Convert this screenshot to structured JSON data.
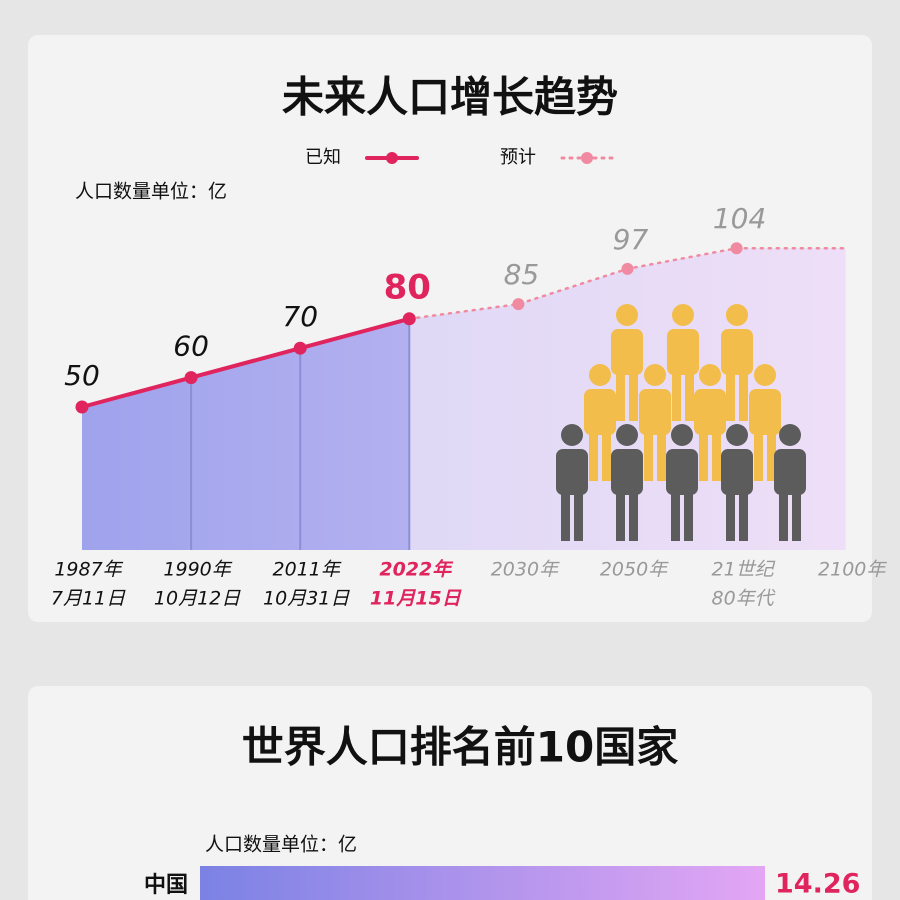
{
  "chart_data": [
    {
      "type": "line",
      "title": "未来人口增长趋势",
      "unit_label": "人口数量单位：亿",
      "categories": [
        [
          "1987年",
          "7月11日"
        ],
        [
          "1990年",
          "10月12日"
        ],
        [
          "2011年",
          "10月31日"
        ],
        [
          "2022年",
          "11月15日"
        ],
        [
          "2030年"
        ],
        [
          "2050年"
        ],
        [
          "21世纪",
          "80年代"
        ],
        [
          "2100年"
        ]
      ],
      "series": [
        {
          "name": "已知",
          "color": "#e0245e",
          "values": [
            50,
            60,
            70,
            80,
            null,
            null,
            null,
            null
          ]
        },
        {
          "name": "预计",
          "color": "#f08aa0",
          "values": [
            null,
            null,
            null,
            80,
            85,
            97,
            104,
            104
          ],
          "value_labels": [
            null,
            null,
            null,
            null,
            "85",
            "97",
            "104",
            null
          ]
        }
      ]
    },
    {
      "type": "bar",
      "title": "世界人口排名前10国家",
      "unit_label": "人口数量单位：亿",
      "categories": [
        "中国"
      ],
      "values": [
        14.26
      ],
      "color": "#e0245e"
    }
  ]
}
